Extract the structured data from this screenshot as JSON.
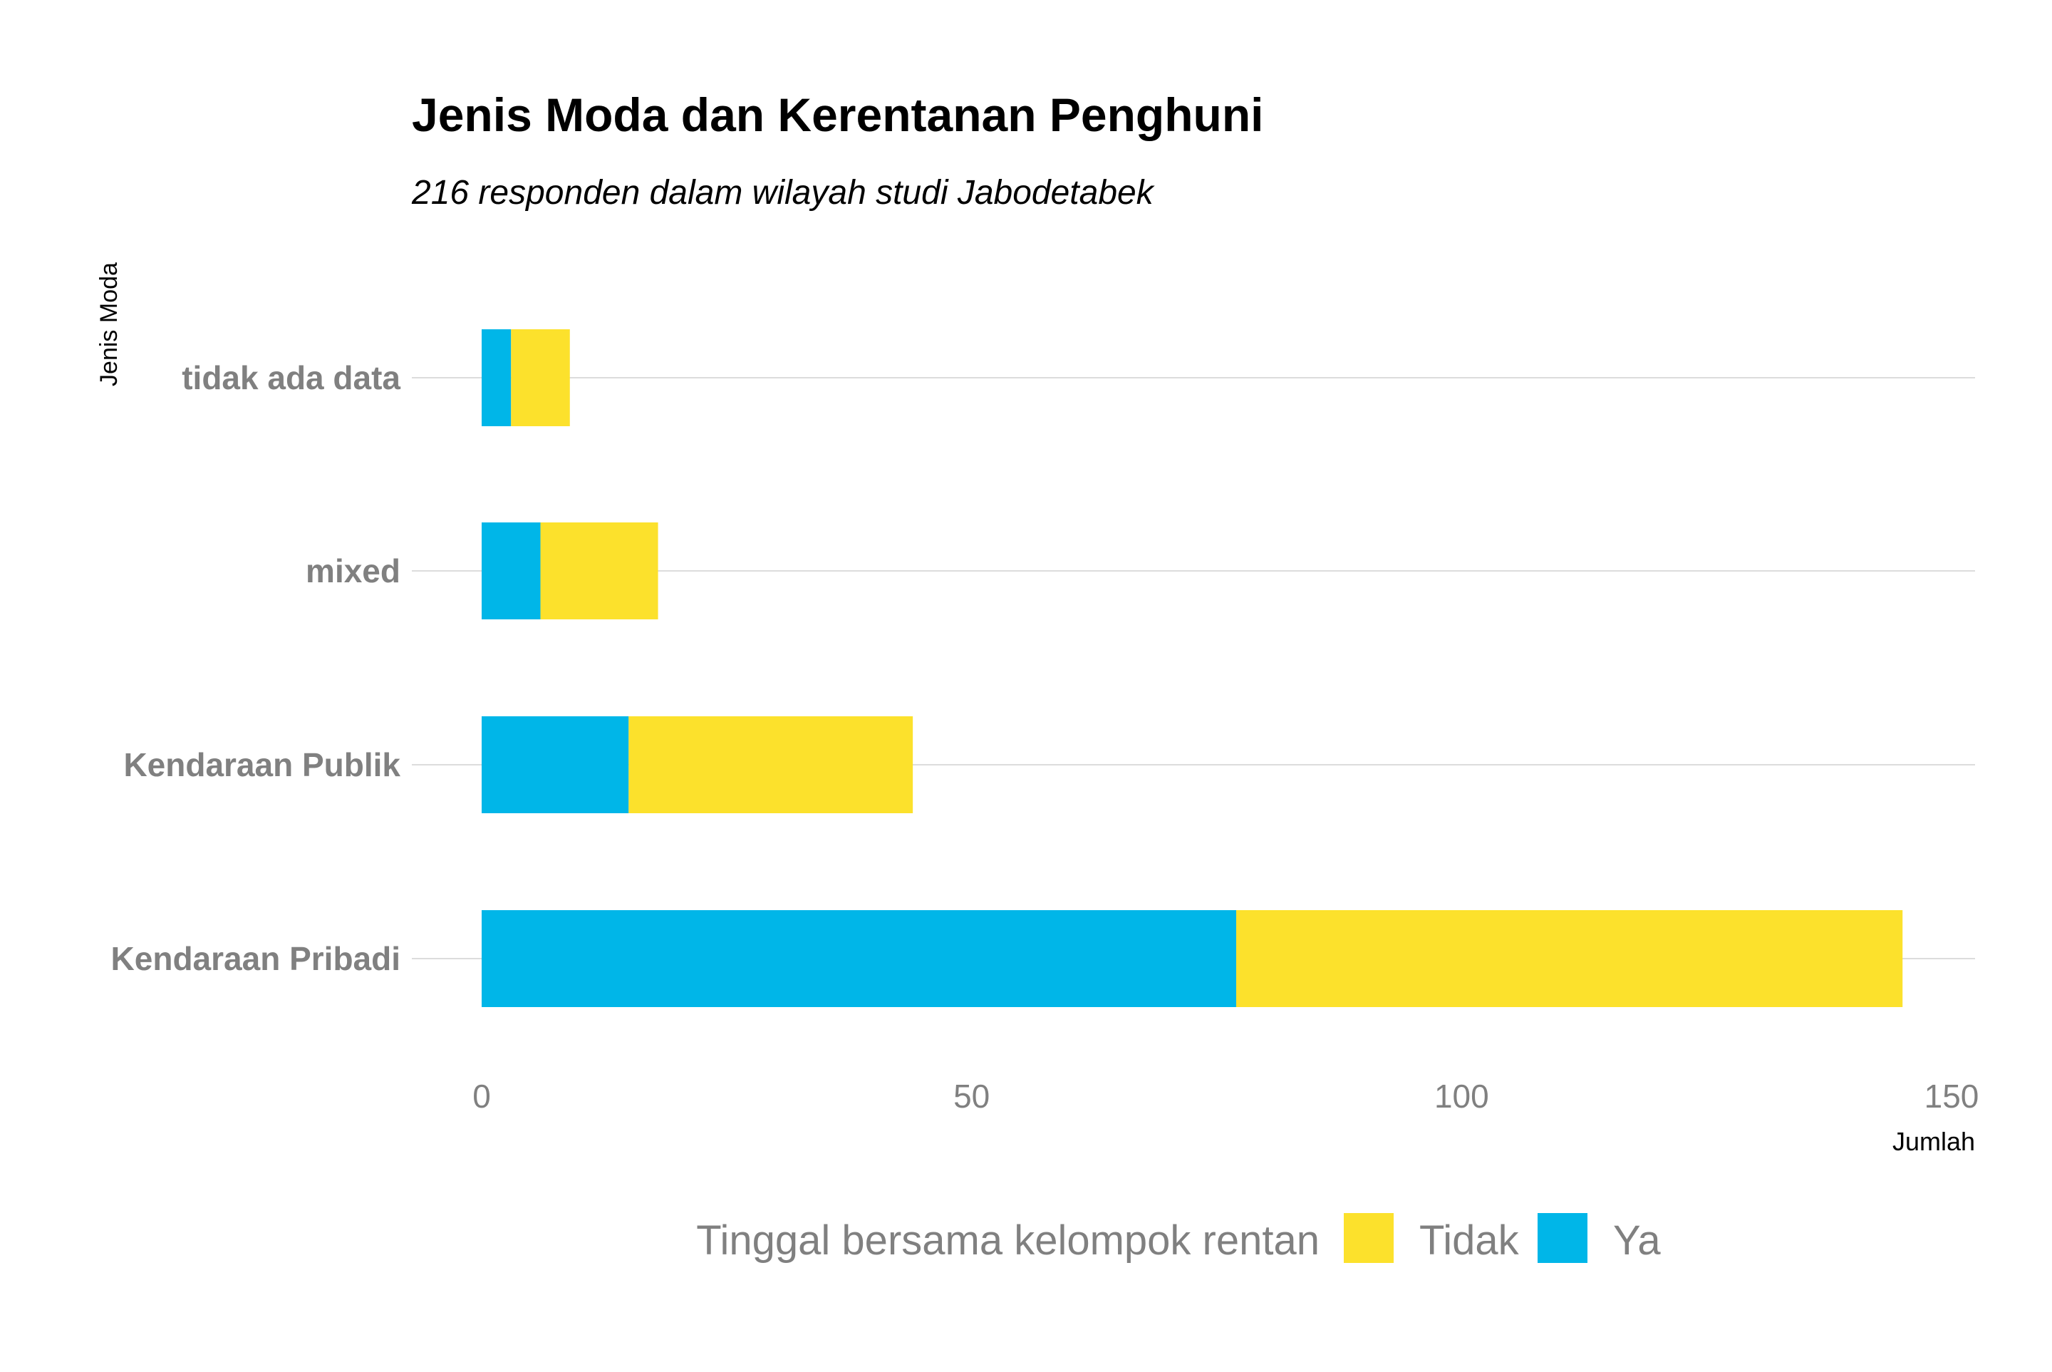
{
  "chart_data": {
    "type": "bar",
    "orientation": "horizontal",
    "stacked": true,
    "title": "Jenis Moda dan Kerentanan Penghuni",
    "subtitle": "216 responden dalam wilayah studi Jabodetabek",
    "xlabel": "Jumlah",
    "ylabel": "Jenis Moda",
    "categories": [
      "tidak ada data",
      "mixed",
      "Kendaraan Publik",
      "Kendaraan Pribadi"
    ],
    "series": [
      {
        "name": "Ya",
        "color": "#00B6E8",
        "values": [
          3,
          6,
          15,
          77
        ]
      },
      {
        "name": "Tidak",
        "color": "#FCE12C",
        "values": [
          6,
          12,
          29,
          68
        ]
      }
    ],
    "xlim": [
      0,
      150
    ],
    "xticks": [
      0,
      50,
      100,
      150
    ],
    "grid": true,
    "legend": {
      "title": "Tinggal bersama kelompok rentan",
      "position": "bottom",
      "items": [
        {
          "label": "Tidak",
          "color": "#FCE12C"
        },
        {
          "label": "Ya",
          "color": "#00B6E8"
        }
      ]
    }
  }
}
